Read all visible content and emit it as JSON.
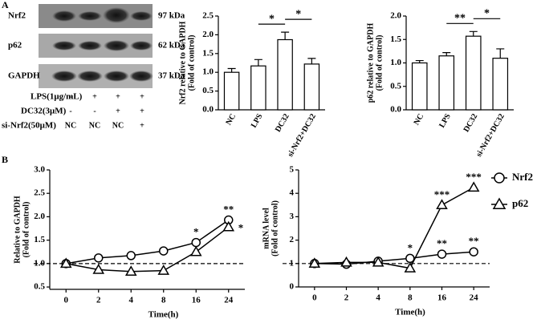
{
  "panel_labels": [
    "A",
    "B"
  ],
  "blot": {
    "rows": [
      {
        "protein": "Nrf2",
        "size": "97 kDa"
      },
      {
        "protein": "p62",
        "size": "62 kDa"
      },
      {
        "protein": "GAPDH",
        "size": "37 kDa"
      }
    ],
    "conditions": [
      {
        "label": "LPS(1μg/mL)",
        "marks": [
          "-",
          "+",
          "+",
          "+"
        ]
      },
      {
        "label": "DC32(3μM)",
        "marks": [
          "-",
          "-",
          "+",
          "+"
        ]
      },
      {
        "label": "si-Nrf2(50μM)",
        "marks": [
          "NC",
          "NC",
          "NC",
          "+"
        ]
      }
    ]
  },
  "chart_data": [
    {
      "type": "bar",
      "ylabel": [
        "Nrf2 relative to GAPDH",
        "(Fold of control)"
      ],
      "categories": [
        "NC",
        "LPS",
        "DC32",
        "si-Nrf2+DC32"
      ],
      "values": [
        1.0,
        1.17,
        1.87,
        1.22
      ],
      "errors": [
        0.1,
        0.17,
        0.2,
        0.15
      ],
      "color": "#ffffff",
      "ylim": [
        0,
        2.5
      ],
      "yticks": [
        {
          "value": 0,
          "label": "0.0"
        },
        {
          "value": 0.5,
          "label": "0.5"
        },
        {
          "value": 1,
          "label": "1.0"
        },
        {
          "value": 1.5,
          "label": "1.5"
        },
        {
          "value": 2,
          "label": "2.0"
        },
        {
          "value": 2.5,
          "label": "2.5"
        }
      ],
      "annotations": [
        {
          "text": "*",
          "from": 1,
          "to": 2
        },
        {
          "text": "*",
          "from": 2,
          "to": 3
        }
      ]
    },
    {
      "type": "bar",
      "ylabel": [
        "p62 relative to GAPDH",
        "(Fold of control)"
      ],
      "categories": [
        "NC",
        "LPS",
        "DC32",
        "si-Nrf2+DC32"
      ],
      "values": [
        1.0,
        1.15,
        1.57,
        1.1
      ],
      "errors": [
        0.05,
        0.07,
        0.1,
        0.2
      ],
      "color": "#ffffff",
      "ylim": [
        0,
        2
      ],
      "yticks": [
        {
          "value": 0,
          "label": "0.0"
        },
        {
          "value": 0.5,
          "label": "0.5"
        },
        {
          "value": 1,
          "label": "1.0"
        },
        {
          "value": 1.5,
          "label": "1.5"
        },
        {
          "value": 2,
          "label": "2.0"
        }
      ],
      "annotations": [
        {
          "text": "**",
          "from": 1,
          "to": 2
        },
        {
          "text": "*",
          "from": 2,
          "to": 3
        }
      ]
    },
    {
      "type": "line",
      "ylabel": [
        "Relative to GAPDH",
        "(Fold of control)"
      ],
      "xlabel": "Time(h)",
      "categories": [
        "0",
        "2",
        "4",
        "8",
        "16",
        "24"
      ],
      "series": [
        {
          "name": "Nrf2",
          "marker": "circle",
          "color": "#000000",
          "values": [
            1.0,
            1.12,
            1.17,
            1.27,
            1.45,
            1.93
          ]
        },
        {
          "name": "p62",
          "marker": "triangle",
          "color": "#000000",
          "values": [
            1.0,
            0.87,
            0.83,
            0.85,
            1.25,
            1.78
          ]
        }
      ],
      "ylim": [
        0.45,
        3
      ],
      "yticks": [
        {
          "value": 0.5,
          "label": "0.5"
        },
        {
          "value": 1,
          "label": "1.0"
        },
        {
          "value": 1.5,
          "label": "1.5"
        },
        {
          "value": 2,
          "label": "2.0"
        },
        {
          "value": 2.5,
          "label": "2.5"
        },
        {
          "value": 3,
          "label": "3.0"
        }
      ],
      "reference_line": 1,
      "annotations": [
        {
          "text": "*",
          "series": 0,
          "index": 4
        },
        {
          "text": "**",
          "series": 0,
          "index": 5
        },
        {
          "text": "*",
          "series": 1,
          "index": 5
        }
      ]
    },
    {
      "type": "line",
      "ylabel": [
        "mRNA level",
        "(Fold of control)"
      ],
      "xlabel": "Time(h)",
      "categories": [
        "0",
        "2",
        "4",
        "8",
        "16",
        "24"
      ],
      "series": [
        {
          "name": "Nrf2",
          "marker": "circle",
          "color": "#000000",
          "values": [
            1.0,
            0.97,
            1.1,
            1.22,
            1.4,
            1.5
          ]
        },
        {
          "name": "p62",
          "marker": "triangle",
          "color": "#000000",
          "values": [
            1.0,
            1.05,
            1.05,
            0.8,
            3.5,
            4.25
          ]
        }
      ],
      "ylim": [
        0,
        5
      ],
      "yticks": [
        0,
        1,
        2,
        3,
        4,
        5
      ],
      "reference_line": 1,
      "legend": "right",
      "annotations": [
        {
          "text": "*",
          "series": 0,
          "index": 3
        },
        {
          "text": "**",
          "series": 0,
          "index": 4
        },
        {
          "text": "**",
          "series": 0,
          "index": 5
        },
        {
          "text": "***",
          "series": 1,
          "index": 4
        },
        {
          "text": "***",
          "series": 1,
          "index": 5
        }
      ]
    }
  ]
}
